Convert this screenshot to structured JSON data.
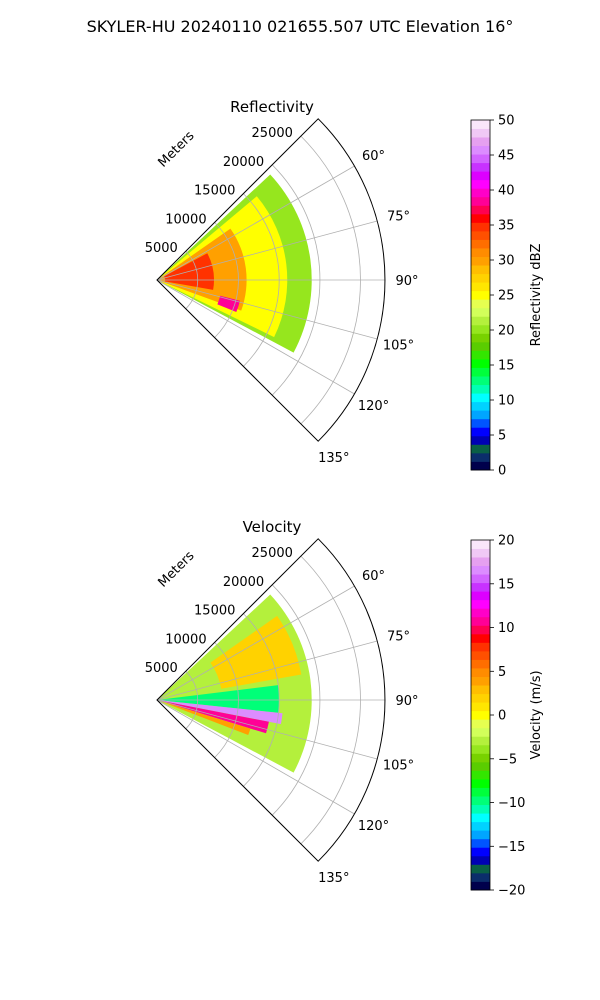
{
  "figure": {
    "title": "SKYLER-HU  20240110  021655.507 UTC Elevation 16°"
  },
  "chart_data": [
    {
      "type": "heatmap",
      "subtype": "polar-sector",
      "title": "Reflectivity",
      "range_label": "Meters",
      "range_ticks": [
        5000,
        10000,
        15000,
        20000,
        25000
      ],
      "range_tick_labels": [
        "5000",
        "10000",
        "15000",
        "20000",
        "25000"
      ],
      "range_max": 28000,
      "angle_min_deg": 45,
      "angle_max_deg": 135,
      "angle_ticks": [
        60,
        75,
        90,
        105,
        120,
        135
      ],
      "angle_tick_labels": [
        "60°",
        "75°",
        "90°",
        "105°",
        "120°",
        "135°"
      ],
      "grid": true,
      "colorbar": {
        "label": "Reflectivity dBZ",
        "min": 0,
        "max": 50,
        "ticks": [
          0,
          5,
          10,
          15,
          20,
          25,
          30,
          35,
          40,
          45,
          50
        ],
        "tick_labels": [
          "0",
          "5",
          "10",
          "15",
          "20",
          "25",
          "30",
          "35",
          "40",
          "45",
          "50"
        ],
        "colors": [
          "#00004c",
          "#0b2d6b",
          "#0a5f46",
          "#0000b4",
          "#0000ff",
          "#0055ff",
          "#00a5ff",
          "#00d2ff",
          "#00ffff",
          "#00ffb4",
          "#00ff78",
          "#00ff3c",
          "#00ff00",
          "#33e600",
          "#5acd00",
          "#78d200",
          "#96e61e",
          "#b4f03c",
          "#d2ff5a",
          "#e6ff50",
          "#ffff00",
          "#ffe600",
          "#ffd200",
          "#ffbe00",
          "#ffa000",
          "#ff8c00",
          "#ff6e00",
          "#ff5000",
          "#ff3200",
          "#ff0000",
          "#ff0050",
          "#ff0096",
          "#ff00c8",
          "#ff00ff",
          "#dc00ff",
          "#c832ff",
          "#d264ff",
          "#dc8cff",
          "#e6a0f0",
          "#f0c8f5",
          "#fae6fa"
        ]
      },
      "echo_regions": [
        {
          "level": 20,
          "r_min": 0,
          "r_max": 19000,
          "az_min": 47,
          "az_max": 118
        },
        {
          "level": 25,
          "r_min": 0,
          "r_max": 16000,
          "az_min": 50,
          "az_max": 116
        },
        {
          "level": 30,
          "r_min": 0,
          "r_max": 11000,
          "az_min": 55,
          "az_max": 110
        },
        {
          "level": 35,
          "r_min": 1000,
          "r_max": 7000,
          "az_min": 62,
          "az_max": 100
        },
        {
          "level": 38,
          "r_min": 8000,
          "r_max": 10500,
          "az_min": 104,
          "az_max": 112
        }
      ]
    },
    {
      "type": "heatmap",
      "subtype": "polar-sector",
      "title": "Velocity",
      "range_label": "Meters",
      "range_ticks": [
        5000,
        10000,
        15000,
        20000,
        25000
      ],
      "range_tick_labels": [
        "5000",
        "10000",
        "15000",
        "20000",
        "25000"
      ],
      "range_max": 28000,
      "angle_min_deg": 45,
      "angle_max_deg": 135,
      "angle_ticks": [
        60,
        75,
        90,
        105,
        120,
        135
      ],
      "angle_tick_labels": [
        "60°",
        "75°",
        "90°",
        "105°",
        "120°",
        "135°"
      ],
      "grid": true,
      "colorbar": {
        "label": "Velocity (m/s)",
        "min": -20,
        "max": 20,
        "ticks": [
          -20,
          -15,
          -10,
          -5,
          0,
          5,
          10,
          15,
          20
        ],
        "tick_labels": [
          "−20",
          "−15",
          "−10",
          "−5",
          "0",
          "5",
          "10",
          "15",
          "20"
        ],
        "colors": [
          "#00004c",
          "#0b2d6b",
          "#0a5f46",
          "#0000b4",
          "#0000ff",
          "#0055ff",
          "#00a5ff",
          "#00d2ff",
          "#00ffff",
          "#00ffb4",
          "#00ff78",
          "#00ff3c",
          "#00ff00",
          "#33e600",
          "#5acd00",
          "#78d200",
          "#96e61e",
          "#b4f03c",
          "#d2ff5a",
          "#e6ff50",
          "#ffff00",
          "#ffe600",
          "#ffd200",
          "#ffbe00",
          "#ffa000",
          "#ff8c00",
          "#ff6e00",
          "#ff5000",
          "#ff3200",
          "#ff0000",
          "#ff0050",
          "#ff0096",
          "#ff00c8",
          "#ff00ff",
          "#dc00ff",
          "#c832ff",
          "#d264ff",
          "#dc8cff",
          "#e6a0f0",
          "#f0c8f5",
          "#fae6fa"
        ]
      },
      "echo_regions": [
        {
          "level": -3,
          "r_min": 0,
          "r_max": 19000,
          "az_min": 47,
          "az_max": 118
        },
        {
          "level": 2,
          "r_min": 8000,
          "r_max": 18000,
          "az_min": 55,
          "az_max": 80
        },
        {
          "level": -10,
          "r_min": 0,
          "r_max": 15000,
          "az_min": 83,
          "az_max": 96
        },
        {
          "level": 17,
          "r_min": 0,
          "r_max": 15500,
          "az_min": 96,
          "az_max": 101
        },
        {
          "level": 11,
          "r_min": 0,
          "r_max": 14000,
          "az_min": 101,
          "az_max": 107
        },
        {
          "level": 4,
          "r_min": 0,
          "r_max": 12000,
          "az_min": 107,
          "az_max": 111
        }
      ]
    }
  ]
}
